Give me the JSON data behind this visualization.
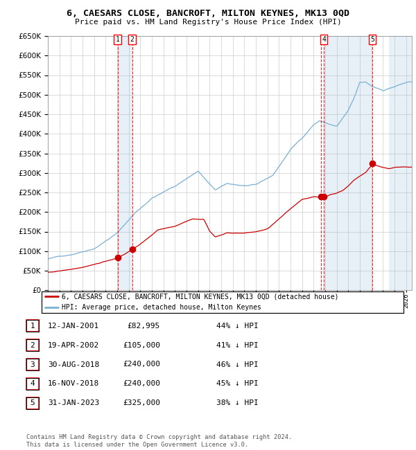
{
  "title1": "6, CAESARS CLOSE, BANCROFT, MILTON KEYNES, MK13 0QD",
  "title2": "Price paid vs. HM Land Registry's House Price Index (HPI)",
  "legend_line1": "6, CAESARS CLOSE, BANCROFT, MILTON KEYNES, MK13 0QD (detached house)",
  "legend_line2": "HPI: Average price, detached house, Milton Keynes",
  "sales": [
    {
      "num": 1,
      "date_dec": 2001.04,
      "price": 82995
    },
    {
      "num": 2,
      "date_dec": 2002.3,
      "price": 105000
    },
    {
      "num": 3,
      "date_dec": 2018.66,
      "price": 240000
    },
    {
      "num": 4,
      "date_dec": 2018.88,
      "price": 240000
    },
    {
      "num": 5,
      "date_dec": 2023.08,
      "price": 325000
    }
  ],
  "table_rows": [
    {
      "num": 1,
      "date": "12-JAN-2001",
      "price": "£82,995",
      "pct": "44% ↓ HPI"
    },
    {
      "num": 2,
      "date": "19-APR-2002",
      "price": "£105,000",
      "pct": "41% ↓ HPI"
    },
    {
      "num": 3,
      "date": "30-AUG-2018",
      "price": "£240,000",
      "pct": "46% ↓ HPI"
    },
    {
      "num": 4,
      "date": "16-NOV-2018",
      "price": "£240,000",
      "pct": "45% ↓ HPI"
    },
    {
      "num": 5,
      "date": "31-JAN-2023",
      "price": "£325,000",
      "pct": "38% ↓ HPI"
    }
  ],
  "footnote": "Contains HM Land Registry data © Crown copyright and database right 2024.\nThis data is licensed under the Open Government Licence v3.0.",
  "sale_color": "#cc0000",
  "hpi_color": "#7aafd4",
  "highlight_color": "#ddeeff",
  "grid_color": "#cccccc",
  "ylim": [
    0,
    650000
  ],
  "xlim_start": 1995.0,
  "xlim_end": 2026.5
}
